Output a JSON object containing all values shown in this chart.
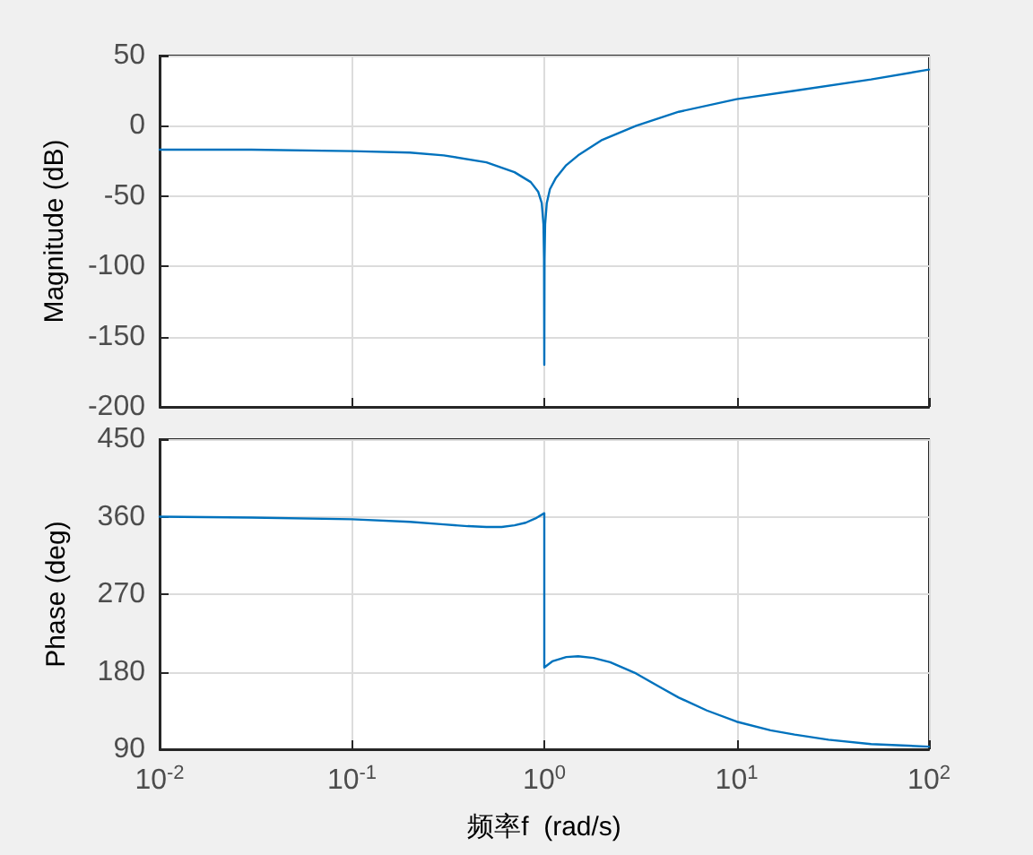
{
  "chart_data": [
    {
      "type": "line",
      "ylabel": "Magnitude (dB)",
      "log": "x",
      "xlim": [
        0.01,
        100
      ],
      "xticks": [
        {
          "value": 0.01,
          "label": null
        },
        {
          "value": 0.1,
          "label": null
        },
        {
          "value": 1,
          "label": null
        },
        {
          "value": 10,
          "label": null
        },
        {
          "value": 100,
          "label": null
        }
      ],
      "ylim": [
        -200,
        50
      ],
      "yticks": [
        -200,
        -150,
        -100,
        -50,
        0,
        50
      ],
      "grid": true,
      "tick_labels": "y",
      "marker": "none",
      "line_style": "solid",
      "series": [
        {
          "color": "#0072bd",
          "x": [
            0.01,
            0.03,
            0.1,
            0.2,
            0.3,
            0.5,
            0.7,
            0.85,
            0.93,
            0.97,
            0.99,
            0.997,
            1.0,
            1.003,
            1.01,
            1.03,
            1.07,
            1.15,
            1.3,
            1.5,
            2,
            3,
            5,
            10,
            20,
            50,
            100
          ],
          "values": [
            -17,
            -17,
            -18,
            -19,
            -21,
            -26,
            -33,
            -40,
            -47,
            -55,
            -70,
            -95,
            -170,
            -95,
            -70,
            -55,
            -45,
            -37,
            -28,
            -21,
            -10,
            0,
            10,
            19,
            25,
            33,
            40
          ]
        }
      ]
    },
    {
      "type": "line",
      "xlabel": "频率f  (rad/s)",
      "ylabel": "Phase (deg)",
      "log": "x",
      "xlim": [
        0.01,
        100
      ],
      "xticks": [
        {
          "value": 0.01,
          "label": "10$^{-2}$"
        },
        {
          "value": 0.1,
          "label": "10$^{-1}$"
        },
        {
          "value": 1,
          "label": "10$^{0}$"
        },
        {
          "value": 10,
          "label": "10$^{1}$"
        },
        {
          "value": 100,
          "label": "10$^{2}$"
        }
      ],
      "ylim": [
        90,
        450
      ],
      "yticks": [
        90,
        180,
        270,
        360,
        450
      ],
      "grid": true,
      "marker": "none",
      "line_style": "solid",
      "series": [
        {
          "color": "#0072bd",
          "x": [
            0.01,
            0.03,
            0.1,
            0.2,
            0.3,
            0.4,
            0.5,
            0.6,
            0.7,
            0.8,
            0.9,
            1.0,
            1.0,
            1.1,
            1.3,
            1.5,
            1.8,
            2.2,
            3,
            4,
            5,
            7,
            10,
            15,
            20,
            30,
            50,
            100
          ],
          "values": [
            360,
            359,
            357,
            354,
            351,
            349,
            348,
            348,
            350,
            353,
            358,
            364,
            185,
            192,
            197,
            198,
            196,
            191,
            178,
            162,
            150,
            135,
            122,
            112,
            107,
            101,
            96,
            93
          ]
        }
      ]
    }
  ]
}
